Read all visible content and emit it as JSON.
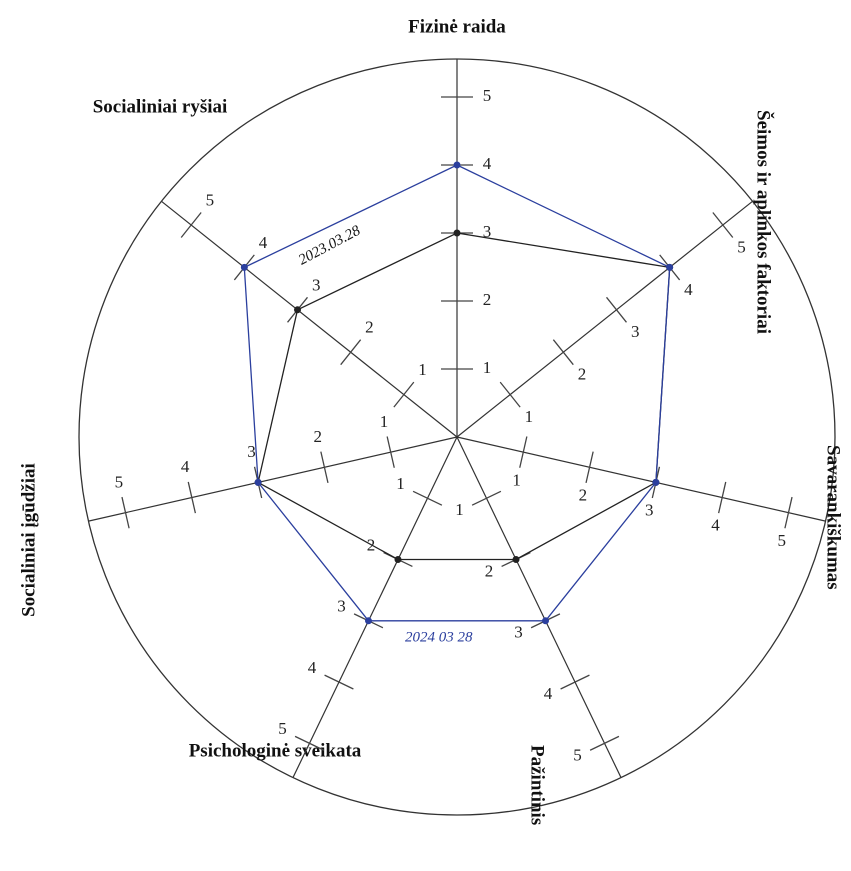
{
  "chart_data": {
    "type": "radar",
    "categories": [
      "Fizinė raida",
      "Šeimos ir aplinkos faktoriai",
      "Savarankiškumas",
      "Pažintinis",
      "Psichologinė sveikata",
      "Socialiniai įgūdžiai",
      "Socialiniai ryšiai"
    ],
    "series": [
      {
        "name": "2023.03.28",
        "color": "#222222",
        "values": [
          3,
          4,
          3,
          2,
          2,
          3,
          3
        ]
      },
      {
        "name": "2024 03 28",
        "color": "#2b3f9e",
        "values": [
          4,
          4,
          3,
          3,
          3,
          3,
          4
        ]
      }
    ],
    "rlim": [
      0,
      5
    ],
    "rticks": [
      1,
      2,
      3,
      4,
      5
    ]
  }
}
